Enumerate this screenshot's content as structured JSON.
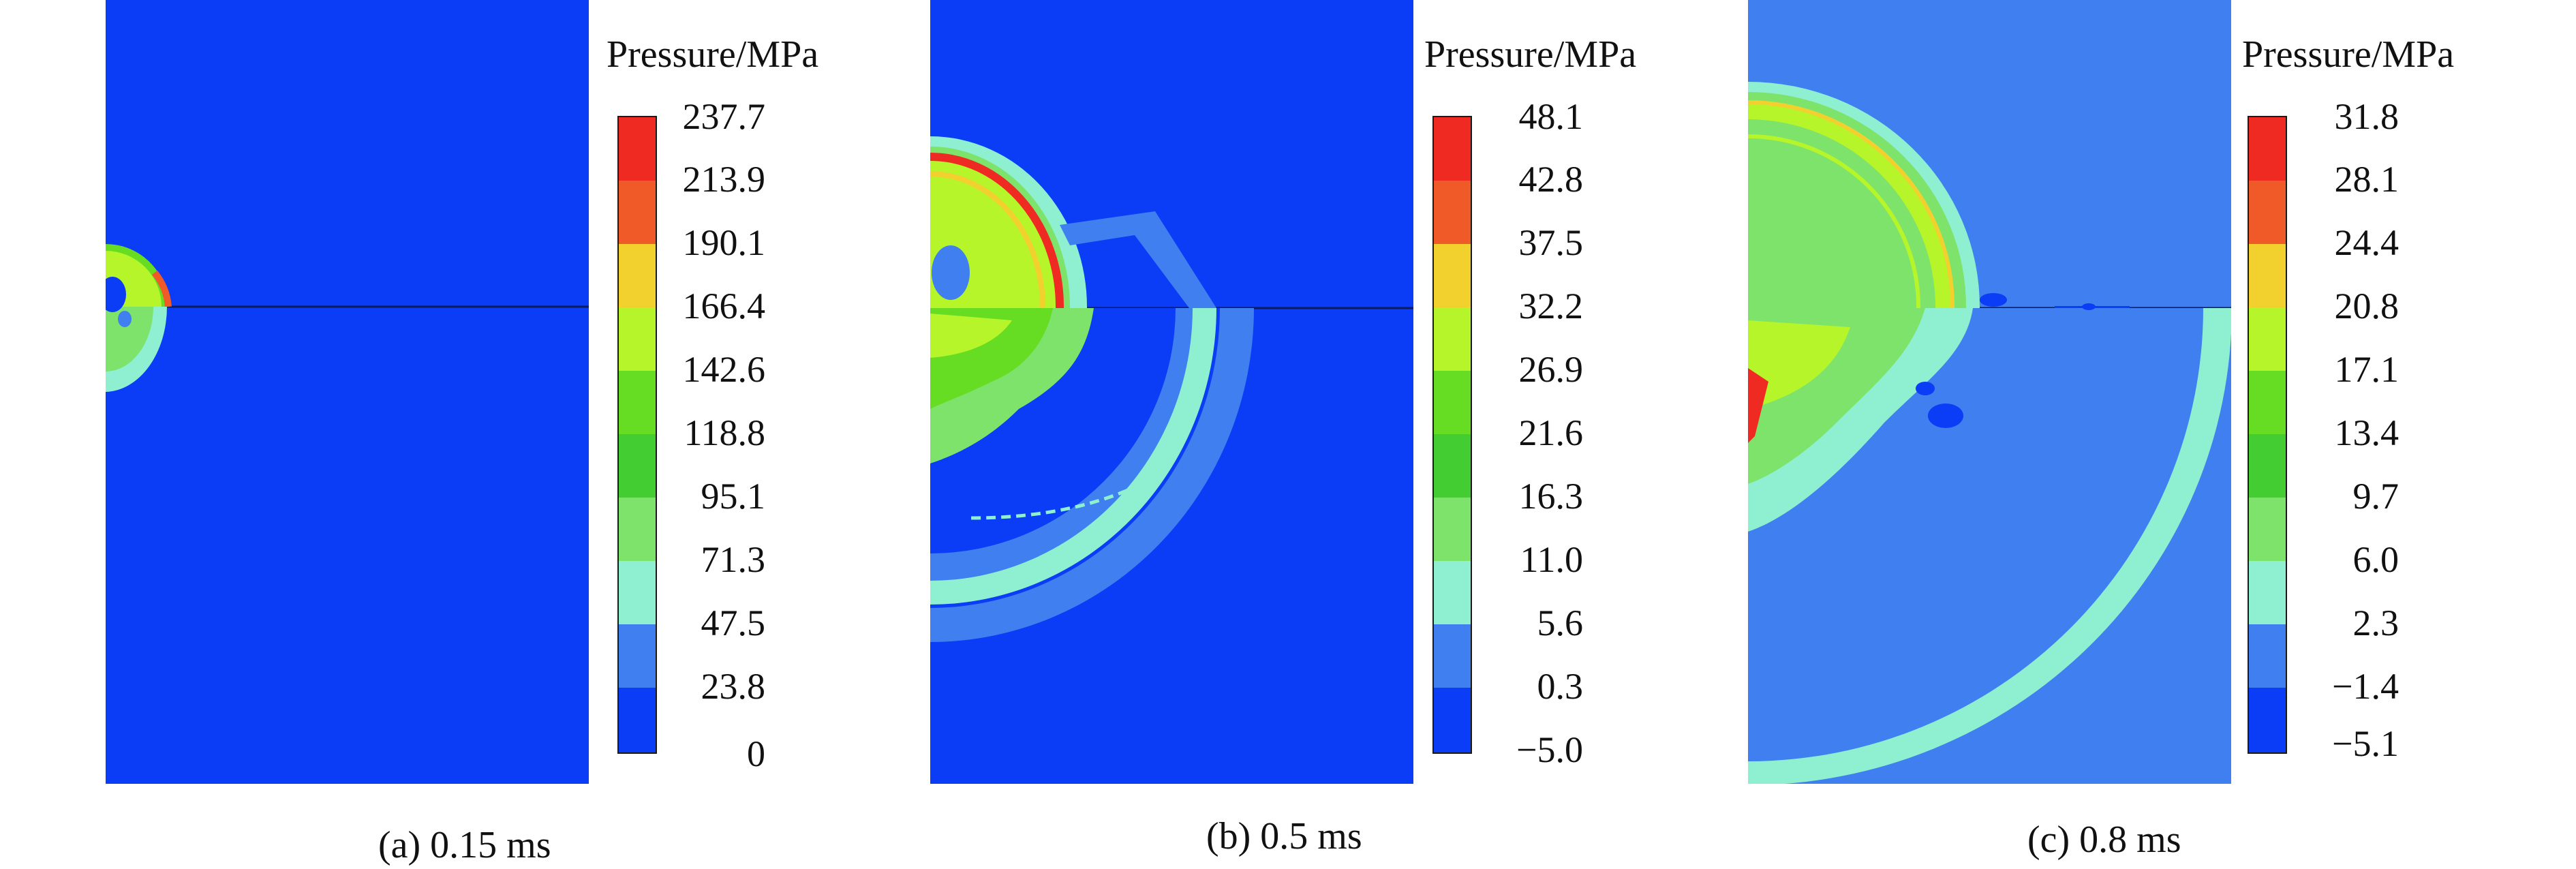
{
  "legend_title": "Pressure/MPa",
  "panels": [
    {
      "caption": "(a) 0.15 ms",
      "ticks": [
        "237.7",
        "213.9",
        "190.1",
        "166.4",
        "142.6",
        "118.8",
        "95.1",
        "71.3",
        "47.5",
        "23.8",
        "0"
      ]
    },
    {
      "caption": "(b) 0.5 ms",
      "ticks": [
        "48.1",
        "42.8",
        "37.5",
        "32.2",
        "26.9",
        "21.6",
        "16.3",
        "11.0",
        "5.6",
        "0.3",
        "−5.0"
      ]
    },
    {
      "caption": "(c) 0.8 ms",
      "ticks": [
        "31.8",
        "28.1",
        "24.4",
        "20.8",
        "17.1",
        "13.4",
        "9.7",
        "6.0",
        "2.3",
        "−1.4",
        "−5.1"
      ]
    }
  ],
  "colormap": [
    "#ee2a22",
    "#f05a28",
    "#f2d12f",
    "#b6f52a",
    "#66dd22",
    "#44cc33",
    "#7ee36a",
    "#8ef0d0",
    "#3f7ff0",
    "#0a3df5"
  ]
}
